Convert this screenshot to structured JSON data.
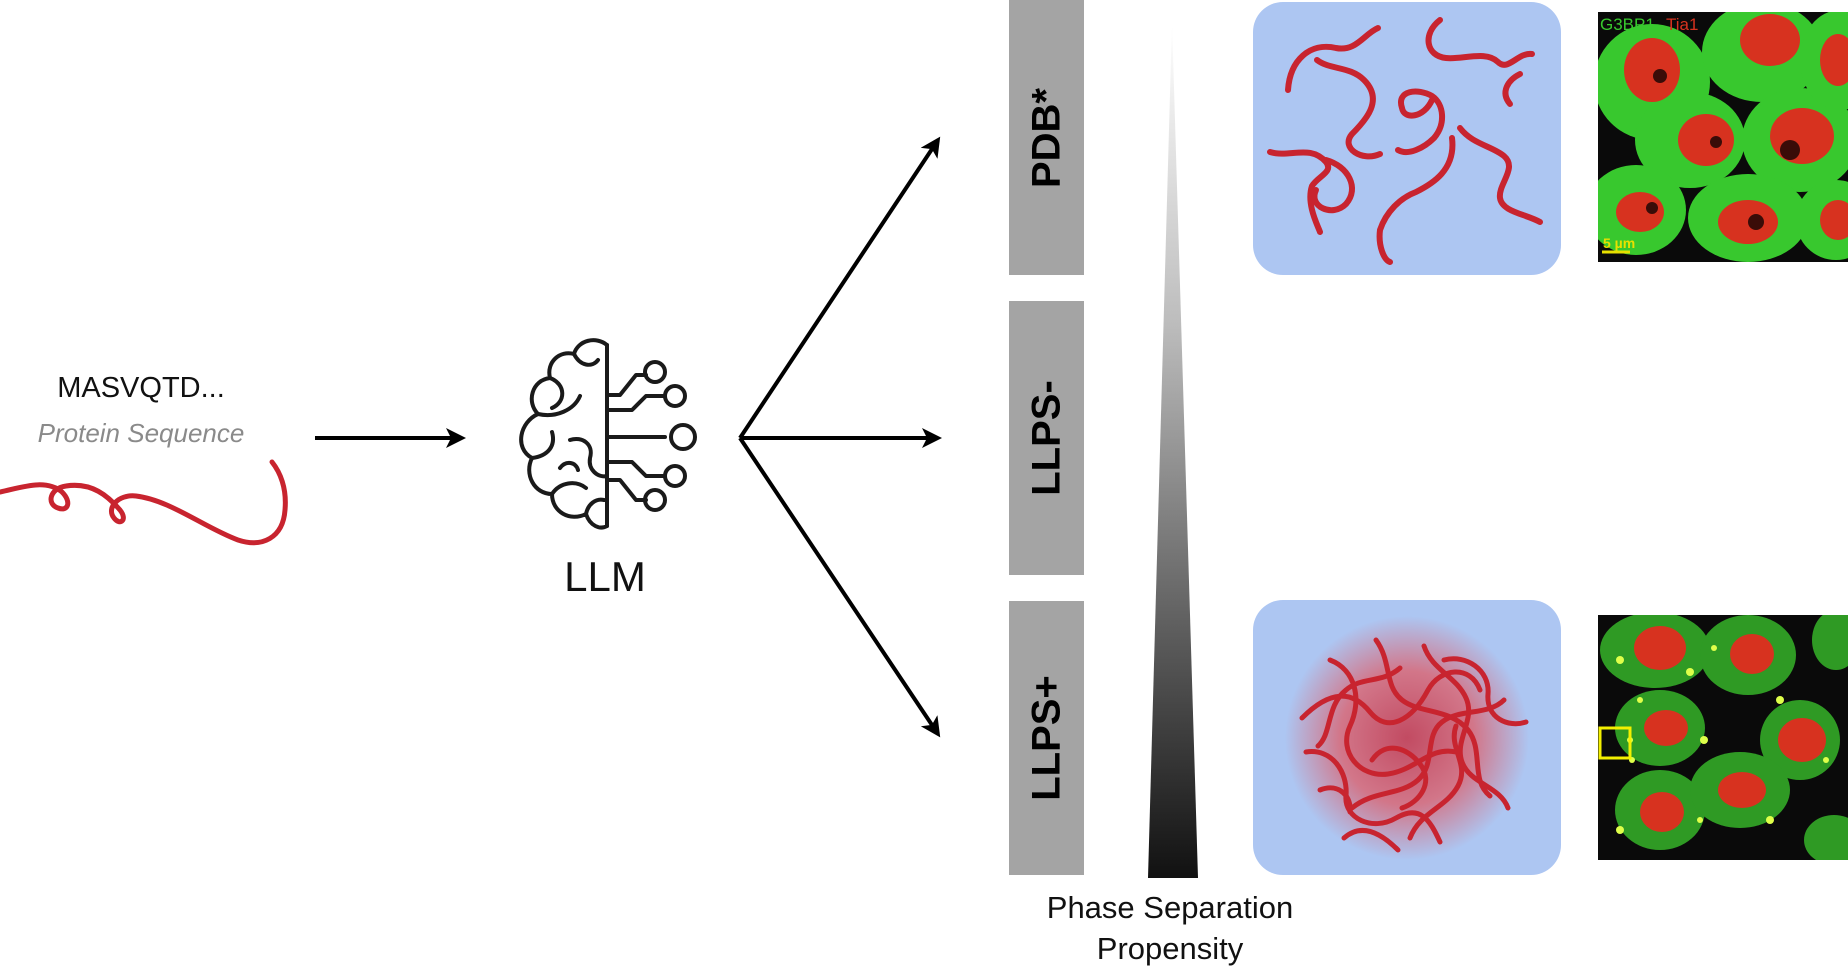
{
  "input": {
    "sequence": "MASVQTD...",
    "caption": "Protein Sequence"
  },
  "model": {
    "label": "LLM",
    "icon": "brain-circuit-icon"
  },
  "categories": [
    {
      "label": "PDB*"
    },
    {
      "label": "LLPS-"
    },
    {
      "label": "LLPS+"
    }
  ],
  "axis": {
    "label": "Phase Separation Propensity"
  },
  "micrographs": {
    "top_label_green": "G3BP1",
    "top_label_red": "Tia1",
    "scale_bar": "5 µm"
  },
  "colors": {
    "protein_chain": "#c8242f",
    "panel_bg": "#adc6f2",
    "category_box": "#a4a4a4",
    "cell_cytoplasm": "#38c82e",
    "cell_nucleus": "#d7321f",
    "highlight_box": "#f3f000"
  }
}
